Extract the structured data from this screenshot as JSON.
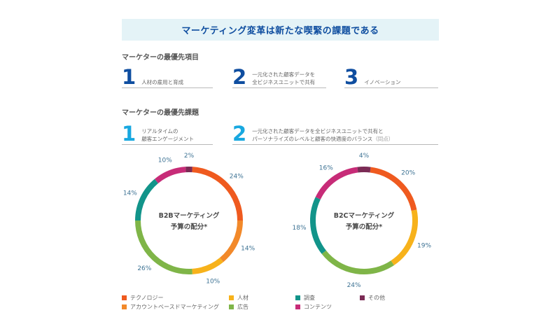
{
  "title": "マーケティング変革は新たな喫緊の課題である",
  "sections": {
    "top_priorities": {
      "heading": "マーケターの最優先項目",
      "items": [
        {
          "num": "1",
          "line1": "人材の雇用と育成",
          "line2": ""
        },
        {
          "num": "2",
          "line1": "一元化された顧客データを",
          "line2": "全ビジネスユニットで共有"
        },
        {
          "num": "3",
          "line1": "イノベーション",
          "line2": ""
        }
      ]
    },
    "top_challenges": {
      "heading": "マーケターの最優先課題",
      "items": [
        {
          "num": "1",
          "line1": "リアルタイムの",
          "line2": "顧客エンゲージメント"
        },
        {
          "num": "2",
          "line1": "一元化された顧客データを全ビジネスユニットで共有と",
          "line2": "パーソナライズのレベルと顧客の快適度のバランス",
          "note": "（同点）"
        }
      ]
    }
  },
  "colors": {
    "technology": "#ef5a1f",
    "account_based": "#f2892a",
    "talent": "#f7b21b",
    "ads": "#7fb548",
    "research": "#12948a",
    "content": "#c72c78",
    "other": "#7b2b55"
  },
  "legend": [
    {
      "key": "technology",
      "label": "テクノロジー"
    },
    {
      "key": "account_based",
      "label": "アカウントベースドマーケティング"
    },
    {
      "key": "talent",
      "label": "人材"
    },
    {
      "key": "ads",
      "label": "広告"
    },
    {
      "key": "research",
      "label": "調査"
    },
    {
      "key": "content",
      "label": "コンテンツ"
    },
    {
      "key": "other",
      "label": "その他"
    }
  ],
  "chart_data": [
    {
      "type": "pie",
      "title": "B2Bマーケティング",
      "subtitle": "予算の配分*",
      "slices": [
        {
          "key": "technology",
          "value": 24,
          "label": "24%"
        },
        {
          "key": "account_based",
          "value": 14,
          "label": "14%"
        },
        {
          "key": "talent",
          "value": 10,
          "label": "10%"
        },
        {
          "key": "ads",
          "value": 26,
          "label": "26%"
        },
        {
          "key": "research",
          "value": 14,
          "label": "14%"
        },
        {
          "key": "content",
          "value": 10,
          "label": "10%"
        },
        {
          "key": "other",
          "value": 2,
          "label": "2%"
        }
      ]
    },
    {
      "type": "pie",
      "title": "B2Cマーケティング",
      "subtitle": "予算の配分*",
      "slices": [
        {
          "key": "technology",
          "value": 20,
          "label": "20%"
        },
        {
          "key": "talent",
          "value": 19,
          "label": "19%"
        },
        {
          "key": "ads",
          "value": 24,
          "label": "24%"
        },
        {
          "key": "research",
          "value": 18,
          "label": "18%"
        },
        {
          "key": "content",
          "value": 16,
          "label": "16%"
        },
        {
          "key": "other",
          "value": 4,
          "label": "4%"
        }
      ]
    }
  ]
}
